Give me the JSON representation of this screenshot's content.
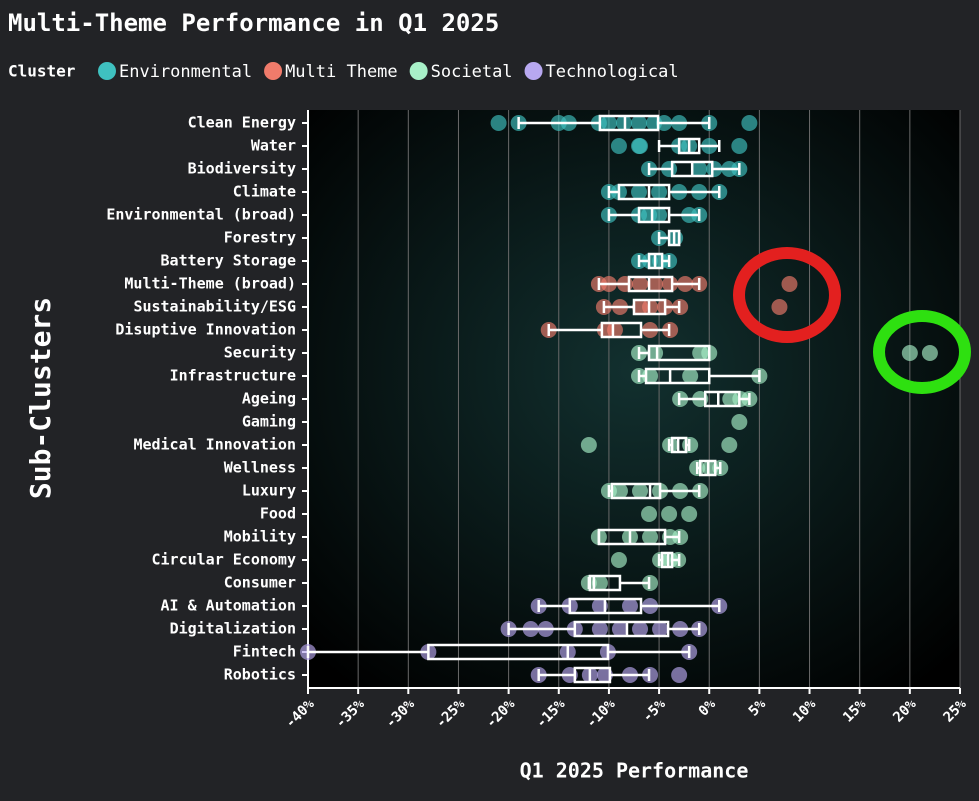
{
  "chart_data": {
    "type": "box",
    "title": "Multi-Theme Performance in Q1 2025",
    "legend_title": "Cluster",
    "x_label": "Q1 2025 Performance",
    "y_label": "Sub-Clusters",
    "xlim": [
      -40,
      25
    ],
    "xticks": [
      {
        "value": -40,
        "label": "-40%"
      },
      {
        "value": -35,
        "label": "-35%"
      },
      {
        "value": -30,
        "label": "-30%"
      },
      {
        "value": -25,
        "label": "-25%"
      },
      {
        "value": -20,
        "label": "-20%"
      },
      {
        "value": -15,
        "label": "-15%"
      },
      {
        "value": -10,
        "label": "-10%"
      },
      {
        "value": -5,
        "label": "-5%"
      },
      {
        "value": 0,
        "label": "0%"
      },
      {
        "value": 5,
        "label": "5%"
      },
      {
        "value": 10,
        "label": "10%"
      },
      {
        "value": 15,
        "label": "15%"
      },
      {
        "value": 20,
        "label": "20%"
      },
      {
        "value": 25,
        "label": "25%"
      }
    ],
    "grid": true,
    "series": [
      {
        "name": "Environmental",
        "color": "#3fc1c0",
        "rows": [
          {
            "category": "Clean Energy",
            "min": -19,
            "q1": -10.9,
            "median": -8.4,
            "q3": -5.1,
            "max": 0,
            "points": [
              -21,
              -19,
              -15,
              -14,
              -11,
              -10,
              -8.5,
              -7,
              -5.5,
              -4.5,
              -3,
              0,
              4
            ]
          },
          {
            "category": "Water",
            "min": -5,
            "q1": -3,
            "median": -2,
            "q3": -1,
            "max": 1,
            "points": [
              -9,
              -7,
              -6.9,
              -3,
              -2,
              0,
              3
            ]
          },
          {
            "category": "Biodiversity",
            "min": -6,
            "q1": -3.7,
            "median": -1.7,
            "q3": 0.3,
            "max": 3,
            "points": [
              -6,
              -4,
              -1,
              0.5,
              2,
              3
            ]
          },
          {
            "category": "Climate",
            "min": -10,
            "q1": -9,
            "median": -6,
            "q3": -4,
            "max": 1,
            "points": [
              -10,
              -9,
              -7,
              -5,
              -3,
              -1,
              1
            ]
          },
          {
            "category": "Environmental (broad)",
            "min": -10,
            "q1": -7,
            "median": -5.7,
            "q3": -4,
            "max": -1,
            "points": [
              -10,
              -7,
              -6,
              -5,
              -2,
              -1
            ]
          },
          {
            "category": "Forestry",
            "min": -5,
            "q1": -4,
            "median": -3.5,
            "q3": -3,
            "max": -3,
            "points": [
              -5,
              -3.4
            ]
          },
          {
            "category": "Battery Storage",
            "min": -7,
            "q1": -6,
            "median": -5.4,
            "q3": -4.7,
            "max": -4,
            "points": [
              -7,
              -5.9,
              -4.9,
              -4
            ]
          }
        ]
      },
      {
        "name": "Multi Theme",
        "color": "#f07b6b",
        "rows": [
          {
            "category": "Multi-Theme (broad)",
            "min": -11,
            "q1": -8,
            "median": -6,
            "q3": -3.7,
            "max": -1,
            "points": [
              -11,
              -10,
              -8.4,
              -6.9,
              -5.4,
              -3.9,
              -2.4,
              -1,
              8
            ]
          },
          {
            "category": "Sustainability/ESG",
            "min": -10.5,
            "q1": -7.5,
            "median": -6,
            "q3": -4.4,
            "max": -3,
            "points": [
              -10.5,
              -8.9,
              -6.9,
              -5.9,
              -4.4,
              -2.9,
              7
            ]
          },
          {
            "category": "Disuptive Innovation",
            "min": -16,
            "q1": -10.7,
            "median": -9.6,
            "q3": -6.8,
            "max": -4,
            "points": [
              -16,
              -10.4,
              -9.4,
              -5.9,
              -3.9
            ]
          }
        ]
      },
      {
        "name": "Societal",
        "color": "#a8f0c8",
        "rows": [
          {
            "category": "Security",
            "min": -7,
            "q1": -6,
            "median": -5.2,
            "q3": 0,
            "max": 0,
            "points": [
              -7,
              -5.4,
              -0.9,
              0,
              20,
              22
            ]
          },
          {
            "category": "Infrastructure",
            "min": -7,
            "q1": -6.3,
            "median": -3.9,
            "q3": 0,
            "max": 5,
            "points": [
              -7,
              -5.9,
              -1.9,
              5
            ]
          },
          {
            "category": "Ageing",
            "min": -3,
            "q1": -0.4,
            "median": 0.9,
            "q3": 3,
            "max": 4,
            "points": [
              -2.9,
              -0.9,
              2.1,
              3.1,
              4
            ]
          },
          {
            "category": "Gaming",
            "points": [
              3
            ]
          },
          {
            "category": "Medical Innovation",
            "min": -4,
            "q1": -3.7,
            "median": -3.1,
            "q3": -2.3,
            "max": -2,
            "points": [
              -12,
              -3.9,
              -1.9,
              2
            ]
          },
          {
            "category": "Wellness",
            "min": -1.2,
            "q1": -0.9,
            "median": -0.1,
            "q3": 0.6,
            "max": 1.1,
            "points": [
              -1.2,
              0.1,
              1.1
            ]
          },
          {
            "category": "Luxury",
            "min": -10,
            "q1": -9.7,
            "median": -5.9,
            "q3": -4.9,
            "max": -1,
            "points": [
              -10,
              -8.9,
              -6.9,
              -4.9,
              -2.9,
              -0.9
            ]
          },
          {
            "category": "Food",
            "points": [
              -6,
              -4,
              -2
            ]
          },
          {
            "category": "Mobility",
            "min": -11,
            "q1": -11,
            "median": -7.9,
            "q3": -4.4,
            "max": -3,
            "points": [
              -11,
              -7.9,
              -5.9,
              -3.9,
              -2.9
            ]
          },
          {
            "category": "Circular Economy",
            "min": -5,
            "q1": -4.7,
            "median": -4.1,
            "q3": -3.7,
            "max": -3,
            "points": [
              -9,
              -4.9,
              -3.9,
              -3.1
            ]
          },
          {
            "category": "Consumer",
            "min": -12,
            "q1": -11.9,
            "median": -11.5,
            "q3": -8.9,
            "max": -6,
            "points": [
              -12,
              -10.9,
              -5.9
            ]
          }
        ]
      },
      {
        "name": "Technological",
        "color": "#b8a8f0",
        "rows": [
          {
            "category": "AI & Automation",
            "min": -17,
            "q1": -13.9,
            "median": -10.4,
            "q3": -6.8,
            "max": 1,
            "points": [
              -17,
              -13.9,
              -10.9,
              -7.9,
              -5.9,
              1
            ]
          },
          {
            "category": "Digitalization",
            "min": -20,
            "q1": -13.4,
            "median": -8.2,
            "q3": -4.1,
            "max": -1,
            "points": [
              -20,
              -17.8,
              -16.3,
              -13.4,
              -10.9,
              -8.9,
              -6.9,
              -4.9,
              -2.9,
              -1
            ]
          },
          {
            "category": "Fintech",
            "min": -40,
            "q1": -28,
            "median": -14.1,
            "q3": -10.1,
            "max": -2,
            "points": [
              -40,
              -28,
              -14.1,
              -10.1,
              -2
            ]
          },
          {
            "category": "Robotics",
            "min": -17,
            "q1": -13.4,
            "median": -11.9,
            "q3": -9.9,
            "max": -6,
            "points": [
              -17,
              -13.9,
              -11.9,
              -10.4,
              -7.9,
              -5.9,
              -3
            ]
          }
        ]
      }
    ]
  }
}
